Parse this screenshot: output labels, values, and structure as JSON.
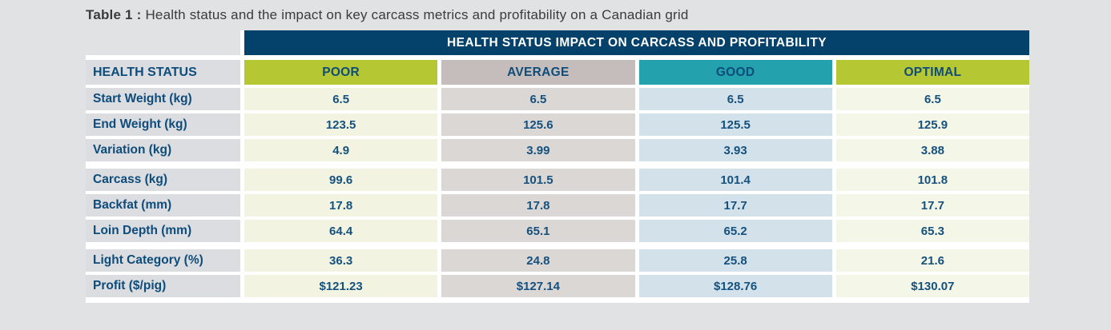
{
  "page": {
    "title_prefix": "Table 1 :",
    "title_text": " Health status and the impact on key carcass metrics and profitability on a Canadian grid"
  },
  "table": {
    "banner": "HEALTH STATUS IMPACT ON CARCASS AND PROFITABILITY",
    "corner_label": "HEALTH STATUS",
    "columns": [
      {
        "label": "POOR",
        "header_bg": "#b5c732",
        "cell_bg": "#f2f4e1"
      },
      {
        "label": "AVERAGE",
        "header_bg": "#c5bdbb",
        "cell_bg": "#dbd7d4"
      },
      {
        "label": "GOOD",
        "header_bg": "#23a1ad",
        "cell_bg": "#d3e2ea"
      },
      {
        "label": "OPTIMAL",
        "header_bg": "#b5c732",
        "cell_bg": "#f4f6e7"
      }
    ],
    "rows": [
      {
        "label": "Start Weight (kg)",
        "values": [
          "6.5",
          "6.5",
          "6.5",
          "6.5"
        ]
      },
      {
        "label": "End Weight (kg)",
        "values": [
          "123.5",
          "125.6",
          "125.5",
          "125.9"
        ]
      },
      {
        "label": "Variation (kg)",
        "values": [
          "4.9",
          "3.99",
          "3.93",
          "3.88"
        ]
      },
      {
        "label": "Carcass (kg)",
        "values": [
          "99.6",
          "101.5",
          "101.4",
          "101.8"
        ]
      },
      {
        "label": "Backfat (mm)",
        "values": [
          "17.8",
          "17.8",
          "17.7",
          "17.7"
        ]
      },
      {
        "label": "Loin Depth (mm)",
        "values": [
          "64.4",
          "65.1",
          "65.2",
          "65.3"
        ]
      },
      {
        "label": "Light Category (%)",
        "values": [
          "36.3",
          "24.8",
          "25.8",
          "21.6"
        ]
      },
      {
        "label": "Profit ($/pig)",
        "values": [
          "$121.23",
          "$127.14",
          "$128.76",
          "$130.07"
        ]
      }
    ],
    "colors": {
      "page_bg": "#e1e2e4",
      "banner_bg": "#04426b",
      "banner_text": "#ffffff",
      "header_text": "#0d4c7b",
      "value_text": "#15517f",
      "label_cell_bg": "#dcdde0",
      "title_text": "#3b3b3d"
    }
  },
  "chart_data": {
    "type": "table",
    "title": "Table 1 : Health status and the impact on key carcass metrics and profitability on a Canadian grid",
    "banner": "HEALTH STATUS IMPACT ON CARCASS AND PROFITABILITY",
    "columns": [
      "HEALTH STATUS",
      "POOR",
      "AVERAGE",
      "GOOD",
      "OPTIMAL"
    ],
    "rows": [
      [
        "Start Weight (kg)",
        6.5,
        6.5,
        6.5,
        6.5
      ],
      [
        "End Weight (kg)",
        123.5,
        125.6,
        125.5,
        125.9
      ],
      [
        "Variation (kg)",
        4.9,
        3.99,
        3.93,
        3.88
      ],
      [
        "Carcass (kg)",
        99.6,
        101.5,
        101.4,
        101.8
      ],
      [
        "Backfat (mm)",
        17.8,
        17.8,
        17.7,
        17.7
      ],
      [
        "Loin Depth (mm)",
        64.4,
        65.1,
        65.2,
        65.3
      ],
      [
        "Light Category (%)",
        36.3,
        24.8,
        25.8,
        21.6
      ],
      [
        "Profit ($/pig)",
        "$121.23",
        "$127.14",
        "$128.76",
        "$130.07"
      ]
    ]
  }
}
